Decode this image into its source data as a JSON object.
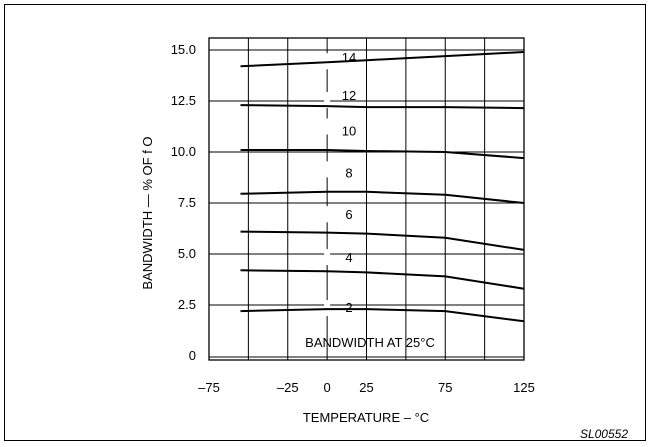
{
  "figure_id": "SL00552",
  "chart_data": {
    "type": "line",
    "title": "",
    "xlabel": "TEMPERATURE – °C",
    "ylabel": "BANDWIDTH — % OF f O",
    "annotation": "BANDWIDTH AT 25°C",
    "xlim": [
      -75,
      125
    ],
    "ylim": [
      0,
      15
    ],
    "x_ticks": [
      -75,
      -25,
      0,
      25,
      75,
      125
    ],
    "x_tick_labels": [
      "–75",
      "–25",
      "0",
      "25",
      "75",
      "125"
    ],
    "y_ticks": [
      0,
      2.5,
      5.0,
      7.5,
      10.0,
      12.5,
      15.0
    ],
    "y_tick_labels": [
      "0",
      "2.5",
      "5.0",
      "7.5",
      "10.0",
      "12.5",
      "15.0"
    ],
    "grid": true,
    "legend": "none",
    "series": [
      {
        "name": "14",
        "x": [
          -55,
          0,
          25,
          75,
          125
        ],
        "y": [
          14.2,
          14.4,
          14.5,
          14.7,
          14.9
        ]
      },
      {
        "name": "12",
        "x": [
          -55,
          0,
          25,
          75,
          125
        ],
        "y": [
          12.3,
          12.25,
          12.2,
          12.2,
          12.15
        ]
      },
      {
        "name": "10",
        "x": [
          -55,
          0,
          25,
          75,
          125
        ],
        "y": [
          10.1,
          10.1,
          10.05,
          10.0,
          9.7
        ]
      },
      {
        "name": "8",
        "x": [
          -55,
          0,
          25,
          75,
          125
        ],
        "y": [
          7.95,
          8.05,
          8.05,
          7.9,
          7.5
        ]
      },
      {
        "name": "6",
        "x": [
          -55,
          0,
          25,
          75,
          125
        ],
        "y": [
          6.1,
          6.05,
          6.0,
          5.8,
          5.2
        ]
      },
      {
        "name": "4",
        "x": [
          -55,
          0,
          25,
          75,
          125
        ],
        "y": [
          4.2,
          4.15,
          4.1,
          3.9,
          3.3
        ]
      },
      {
        "name": "2",
        "x": [
          -55,
          0,
          25,
          75,
          125
        ],
        "y": [
          2.2,
          2.3,
          2.3,
          2.2,
          1.7
        ]
      }
    ]
  }
}
